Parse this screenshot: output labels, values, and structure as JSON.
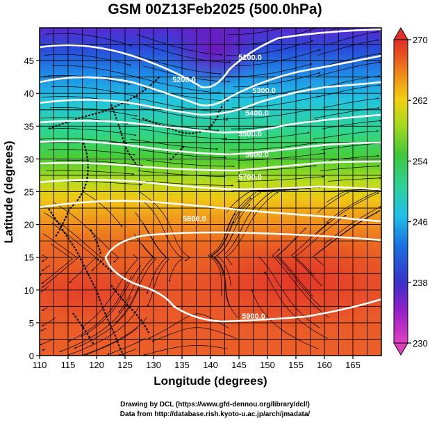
{
  "title": "GSM 00Z13Feb2025 (500.0hPa)",
  "xaxis": {
    "label": "Longitude (degrees)",
    "ticks": [
      "110",
      "115",
      "120",
      "125",
      "130",
      "135",
      "140",
      "145",
      "150",
      "155",
      "160",
      "165"
    ],
    "range": [
      110,
      170
    ]
  },
  "yaxis": {
    "label": "Latitude  (degrees)",
    "ticks": [
      "0",
      "5",
      "10",
      "15",
      "20",
      "25",
      "30",
      "35",
      "40",
      "45"
    ],
    "range": [
      0,
      50
    ]
  },
  "colorbar": {
    "ticks": [
      "230",
      "238",
      "246",
      "254",
      "262",
      "270"
    ],
    "range": [
      230,
      270
    ],
    "colors": [
      "#e040c0",
      "#9a20c8",
      "#3a30c8",
      "#1a70e0",
      "#20c0e8",
      "#30d098",
      "#3ec83a",
      "#a8d81e",
      "#f0d010",
      "#f09018",
      "#e85020",
      "#e03028"
    ]
  },
  "contour_labels": [
    "5100.0",
    "5200.0",
    "5300.0",
    "5400.0",
    "5500.0",
    "5600.0",
    "5700.0",
    "5800.0",
    "5900.0"
  ],
  "chart_data": {
    "type": "heatmap",
    "title": "GSM 00Z13Feb2025 (500.0hPa)",
    "xlabel": "Longitude (degrees)",
    "ylabel": "Latitude  (degrees)",
    "xlim": [
      110,
      170
    ],
    "ylim": [
      0,
      50
    ],
    "colorbar_range": [
      230,
      270
    ],
    "colorbar_ticks": [
      230,
      238,
      246,
      254,
      262,
      270
    ],
    "temperature_k_by_latitude": [
      {
        "lat": 0,
        "value": 266
      },
      {
        "lat": 10,
        "value": 267
      },
      {
        "lat": 20,
        "value": 265
      },
      {
        "lat": 25,
        "value": 262
      },
      {
        "lat": 30,
        "value": 257
      },
      {
        "lat": 35,
        "value": 252
      },
      {
        "lat": 40,
        "value": 246
      },
      {
        "lat": 45,
        "value": 240
      },
      {
        "lat": 50,
        "value": 236
      }
    ],
    "height_contours_m": [
      5100,
      5200,
      5300,
      5400,
      5500,
      5600,
      5700,
      5800,
      5900
    ],
    "grid": true
  },
  "credits": {
    "line1": "Drawing by DCL (https://www.gfd-dennou.org/library/dcl/)",
    "line2": "Data from http://database.rish.kyoto-u.ac.jp/arch/jmadata/"
  }
}
